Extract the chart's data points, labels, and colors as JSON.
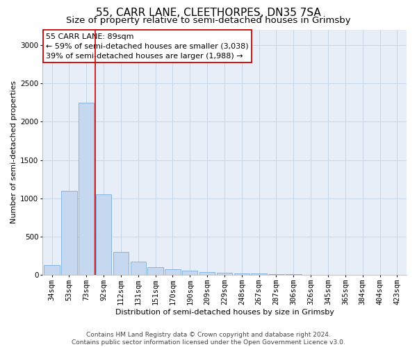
{
  "title": "55, CARR LANE, CLEETHORPES, DN35 7SA",
  "subtitle": "Size of property relative to semi-detached houses in Grimsby",
  "xlabel": "Distribution of semi-detached houses by size in Grimsby",
  "ylabel": "Number of semi-detached properties",
  "footer_line1": "Contains HM Land Registry data © Crown copyright and database right 2024.",
  "footer_line2": "Contains public sector information licensed under the Open Government Licence v3.0.",
  "annotation_text_line1": "55 CARR LANE: 89sqm",
  "annotation_text_line2": "← 59% of semi-detached houses are smaller (3,038)",
  "annotation_text_line3": "39% of semi-detached houses are larger (1,988) →",
  "bar_categories": [
    "34sqm",
    "53sqm",
    "73sqm",
    "92sqm",
    "112sqm",
    "131sqm",
    "151sqm",
    "170sqm",
    "190sqm",
    "209sqm",
    "229sqm",
    "248sqm",
    "267sqm",
    "287sqm",
    "306sqm",
    "326sqm",
    "345sqm",
    "365sqm",
    "384sqm",
    "404sqm",
    "423sqm"
  ],
  "bar_values": [
    130,
    1100,
    2250,
    1050,
    300,
    175,
    100,
    75,
    55,
    40,
    35,
    25,
    20,
    15,
    10,
    8,
    5,
    4,
    3,
    2,
    2
  ],
  "bar_color": "#c5d8f0",
  "bar_edge_color": "#7aade0",
  "red_line_x": 2.5,
  "ylim": [
    0,
    3200
  ],
  "yticks": [
    0,
    500,
    1000,
    1500,
    2000,
    2500,
    3000
  ],
  "background_color": "#ffffff",
  "plot_bg_color": "#e8eef8",
  "grid_color": "#c8d4e8",
  "annotation_box_color": "#ffffff",
  "annotation_box_edge_color": "#cc0000",
  "red_line_color": "#cc0000",
  "title_fontsize": 11,
  "subtitle_fontsize": 9.5,
  "axis_label_fontsize": 8,
  "tick_fontsize": 7.5,
  "annotation_fontsize": 8,
  "footer_fontsize": 6.5
}
